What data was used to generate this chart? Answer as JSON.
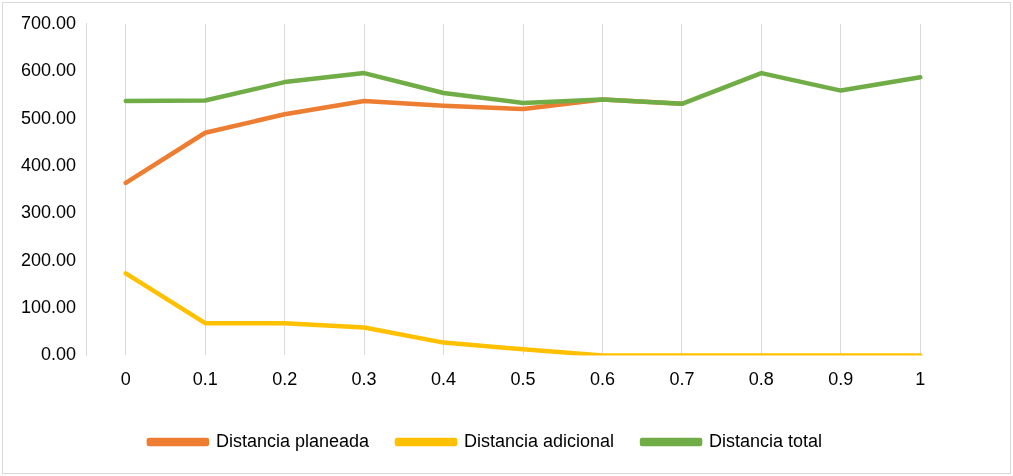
{
  "chart_data": {
    "type": "line",
    "categories": [
      "0",
      "0.1",
      "0.2",
      "0.3",
      "0.4",
      "0.5",
      "0.6",
      "0.7",
      "0.8",
      "0.9",
      "1"
    ],
    "series": [
      {
        "name": "Distancia planeada",
        "color": "#ed7d31",
        "values": [
          364,
          470,
          509,
          537,
          527,
          520,
          540,
          531,
          null,
          null,
          null
        ]
      },
      {
        "name": "Distancia adicional",
        "color": "#ffc000",
        "values": [
          173,
          68,
          68,
          59,
          27,
          13,
          0,
          0,
          0,
          0,
          0
        ]
      },
      {
        "name": "Distancia total",
        "color": "#70ad47",
        "values": [
          537,
          538,
          577,
          596,
          554,
          533,
          540,
          531,
          596,
          559,
          587
        ]
      }
    ],
    "ylim": [
      0,
      700
    ],
    "yticks": [
      {
        "value": 0,
        "label": "0.00"
      },
      {
        "value": 100,
        "label": "100.00"
      },
      {
        "value": 200,
        "label": "200.00"
      },
      {
        "value": 300,
        "label": "300.00"
      },
      {
        "value": 400,
        "label": "400.00"
      },
      {
        "value": 500,
        "label": "500.00"
      },
      {
        "value": 600,
        "label": "600.00"
      },
      {
        "value": 700,
        "label": "700.00"
      }
    ],
    "grid": "x",
    "legend": "bottom",
    "marker": "none",
    "line_style": "solid"
  }
}
